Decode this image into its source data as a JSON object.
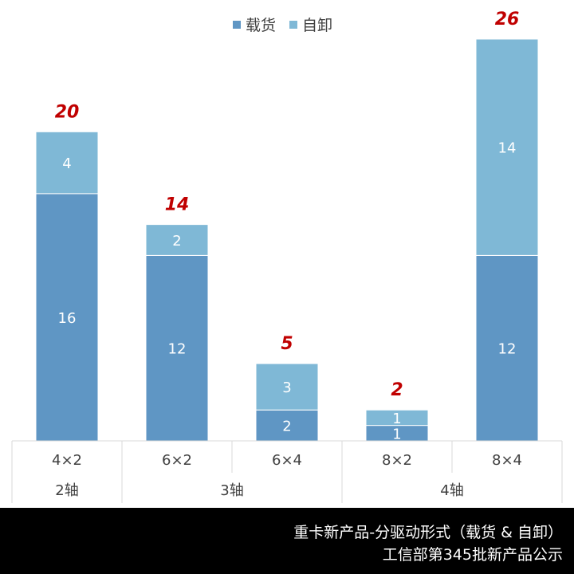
{
  "chart_data": {
    "type": "bar",
    "stacked": true,
    "categories": [
      "4×2",
      "6×2",
      "6×4",
      "8×2",
      "8×4"
    ],
    "groups": [
      {
        "label": "2轴",
        "categories": [
          "4×2"
        ]
      },
      {
        "label": "3轴",
        "categories": [
          "6×2",
          "6×4"
        ]
      },
      {
        "label": "4轴",
        "categories": [
          "8×2",
          "8×4"
        ]
      }
    ],
    "series": [
      {
        "name": "载货",
        "values": [
          16,
          12,
          2,
          1,
          12
        ],
        "color": "#5f96c4"
      },
      {
        "name": "自卸",
        "values": [
          4,
          2,
          3,
          1,
          14
        ],
        "color": "#7fb8d6"
      }
    ],
    "totals": [
      "20",
      "14",
      "5",
      "2",
      "26"
    ],
    "total_label_color": "#c00000",
    "ylim": [
      0,
      26
    ],
    "legend_position": "top"
  },
  "footer": {
    "line1": "重卡新产品-分驱动形式（载货 & 自卸）",
    "line2": "工信部第345批新产品公示"
  }
}
